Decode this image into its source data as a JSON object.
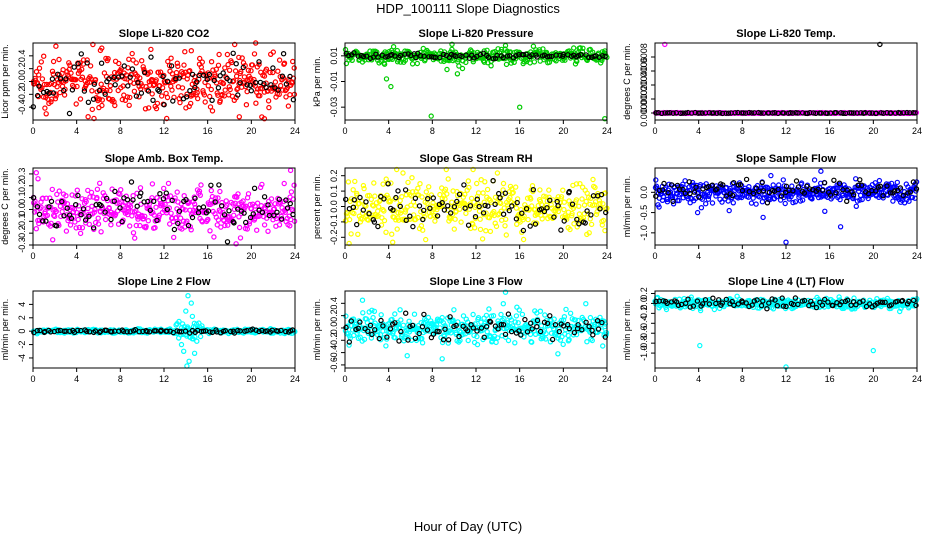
{
  "title": "HDP_100111  Slope Diagnostics",
  "xlabel": "Hour of Day (UTC)",
  "colors": {
    "red": "#ff0000",
    "green": "#00cc00",
    "magenta": "#ff00ff",
    "yellow": "#ffff00",
    "blue": "#0000ff",
    "cyan": "#00ffff",
    "black": "#000000"
  },
  "chart_data": [
    {
      "type": "scatter",
      "title": "Slope Li-820 CO2",
      "ylabel": "Licor ppm per min.",
      "xlim": [
        0,
        24
      ],
      "ylim": [
        -0.6,
        0.6
      ],
      "xticks": [
        "0",
        "4",
        "8",
        "12",
        "16",
        "20",
        "24"
      ],
      "yticks": [
        "-0.4",
        "-0.2",
        "0.0",
        "0.2",
        "0.4"
      ],
      "ytick_values": [
        -0.4,
        -0.2,
        0.0,
        0.2,
        0.4
      ],
      "series": [
        {
          "color": "red",
          "style": "noise",
          "center": 0.0,
          "spread": 0.2,
          "count": 420,
          "x": [
            2.1,
            6.3,
            10.8,
            14.5,
            18.9,
            20.4,
            21.2
          ],
          "y": [
            0.55,
            0.52,
            0.5,
            0.48,
            -0.55,
            0.6,
            -0.58
          ]
        },
        {
          "color": "black",
          "style": "noise",
          "center": 0.0,
          "spread": 0.18,
          "count": 90,
          "x": [],
          "y": []
        }
      ]
    },
    {
      "type": "scatter",
      "title": "Slope Li-820 Pressure",
      "ylabel": "kPa per min.",
      "xlim": [
        0,
        24
      ],
      "ylim": [
        -0.04,
        0.02
      ],
      "xticks": [
        "0",
        "4",
        "8",
        "12",
        "16",
        "20",
        "24"
      ],
      "yticks": [
        "-0.03",
        "-0.01",
        "0.01"
      ],
      "ytick_values": [
        -0.03,
        -0.01,
        0.01
      ],
      "series": [
        {
          "color": "green",
          "style": "noise",
          "center": 0.01,
          "spread": 0.003,
          "count": 380,
          "x": [
            3.8,
            4.2,
            7.9,
            16.0,
            23.8,
            10.3,
            14.7,
            9.8
          ],
          "y": [
            -0.008,
            -0.014,
            -0.037,
            -0.03,
            -0.039,
            -0.004,
            0.018,
            0.019
          ]
        },
        {
          "color": "black",
          "style": "noise",
          "center": 0.01,
          "spread": 0.001,
          "count": 90,
          "x": [],
          "y": []
        }
      ]
    },
    {
      "type": "scatter",
      "title": "Slope Li-820 Temp.",
      "ylabel": "degrees C per min.",
      "xlim": [
        0,
        24
      ],
      "ylim": [
        -0.0001,
        0.001
      ],
      "xticks": [
        "0",
        "4",
        "8",
        "12",
        "16",
        "20",
        "24"
      ],
      "yticks": [
        "0.0000",
        "0.0002",
        "0.0004",
        "0.0006",
        "0.0008"
      ],
      "ytick_values": [
        0.0,
        0.0002,
        0.0004,
        0.0006,
        0.0008
      ],
      "series": [
        {
          "color": "magenta",
          "style": "flat",
          "center": 0.0,
          "spread": 0.0,
          "count": 300,
          "x": [
            0.9,
            20.3
          ],
          "y": [
            0.00098,
            0.0
          ]
        },
        {
          "color": "black",
          "style": "flat",
          "center": 0.0,
          "spread": 0.0,
          "count": 90,
          "x": [
            20.6
          ],
          "y": [
            0.00098
          ]
        }
      ]
    },
    {
      "type": "scatter",
      "title": "Slope Amb. Box Temp.",
      "ylabel": "degrees C per min.",
      "xlim": [
        0,
        24
      ],
      "ylim": [
        -0.3,
        0.35
      ],
      "xticks": [
        "0",
        "4",
        "8",
        "12",
        "16",
        "20",
        "24"
      ],
      "yticks": [
        "-0.3",
        "-0.2",
        "-0.1",
        "0.0",
        "0.1",
        "0.2",
        "0.3"
      ],
      "ytick_values": [
        -0.3,
        -0.2,
        -0.1,
        0.0,
        0.1,
        0.2,
        0.3
      ],
      "series": [
        {
          "color": "magenta",
          "style": "noise",
          "center": 0.0,
          "spread": 0.1,
          "count": 420,
          "x": [
            18.6,
            23.6,
            0.3
          ],
          "y": [
            -0.29,
            0.33,
            0.31
          ]
        },
        {
          "color": "black",
          "style": "noise",
          "center": 0.0,
          "spread": 0.09,
          "count": 90,
          "x": [],
          "y": []
        }
      ]
    },
    {
      "type": "scatter",
      "title": "Slope Gas Stream RH",
      "ylabel": "percent per min.",
      "xlim": [
        0,
        24
      ],
      "ylim": [
        -0.25,
        0.25
      ],
      "xticks": [
        "0",
        "4",
        "8",
        "12",
        "16",
        "20",
        "24"
      ],
      "yticks": [
        "-0.2",
        "-0.1",
        "0.0",
        "0.1",
        "0.2"
      ],
      "ytick_values": [
        -0.2,
        -0.1,
        0.0,
        0.1,
        0.2
      ],
      "series": [
        {
          "color": "yellow",
          "style": "noise",
          "center": 0.0,
          "spread": 0.08,
          "count": 420,
          "x": [],
          "y": []
        },
        {
          "color": "black",
          "style": "noise",
          "center": 0.0,
          "spread": 0.07,
          "count": 90,
          "x": [],
          "y": []
        }
      ]
    },
    {
      "type": "scatter",
      "title": "Slope Sample Flow",
      "ylabel": "ml/min per min.",
      "xlim": [
        0,
        24
      ],
      "ylim": [
        -1.3,
        0.6
      ],
      "xticks": [
        "0",
        "4",
        "8",
        "12",
        "16",
        "20",
        "24"
      ],
      "yticks": [
        "-1.0",
        "-0.5",
        "0.0"
      ],
      "ytick_values": [
        -1.0,
        -0.5,
        0.0
      ],
      "series": [
        {
          "color": "blue",
          "style": "noise",
          "center": 0.0,
          "spread": 0.13,
          "count": 420,
          "x": [
            12.0,
            9.9,
            15.2,
            17.0,
            6.8,
            3.9
          ],
          "y": [
            -1.23,
            -0.62,
            0.52,
            -0.85,
            -0.45,
            -0.5
          ]
        },
        {
          "color": "black",
          "style": "noise",
          "center": 0.05,
          "spread": 0.12,
          "count": 90,
          "x": [],
          "y": []
        }
      ]
    },
    {
      "type": "scatter",
      "title": "Slope Line 2 Flow",
      "ylabel": "ml/min per min.",
      "xlim": [
        0,
        24
      ],
      "ylim": [
        -5.5,
        6
      ],
      "xticks": [
        "0",
        "4",
        "8",
        "12",
        "16",
        "20",
        "24"
      ],
      "yticks": [
        "-4",
        "-2",
        "0",
        "2",
        "4"
      ],
      "ytick_values": [
        -4,
        -2,
        0,
        2,
        4
      ],
      "series": [
        {
          "color": "cyan",
          "style": "spike",
          "center": 0.0,
          "spread": 0.25,
          "count": 420,
          "x": [
            14.2,
            14.5,
            14.0,
            14.8,
            14.3,
            13.8,
            14.6,
            15.0,
            13.6,
            14.1
          ],
          "y": [
            5.3,
            4.2,
            3.0,
            -3.3,
            -4.5,
            -3.0,
            2.2,
            -1.5,
            -2.0,
            -5.2
          ]
        },
        {
          "color": "black",
          "style": "noise",
          "center": 0.0,
          "spread": 0.1,
          "count": 90,
          "x": [],
          "y": []
        }
      ]
    },
    {
      "type": "scatter",
      "title": "Slope Line 3 Flow",
      "ylabel": "ml/min per min.",
      "xlim": [
        0,
        24
      ],
      "ylim": [
        -0.65,
        0.6
      ],
      "xticks": [
        "0",
        "4",
        "8",
        "12",
        "16",
        "20",
        "24"
      ],
      "yticks": [
        "-0.6",
        "-0.4",
        "-0.2",
        "0.0",
        "0.2",
        "0.4"
      ],
      "ytick_values": [
        -0.6,
        -0.4,
        -0.2,
        0.0,
        0.2,
        0.4
      ],
      "series": [
        {
          "color": "cyan",
          "style": "noise",
          "center": 0.0,
          "spread": 0.13,
          "count": 420,
          "x": [
            14.7,
            5.7,
            19.5,
            1.6,
            8.9
          ],
          "y": [
            0.58,
            -0.45,
            -0.42,
            0.45,
            -0.5
          ]
        },
        {
          "color": "black",
          "style": "noise",
          "center": 0.0,
          "spread": 0.1,
          "count": 90,
          "x": [],
          "y": []
        }
      ]
    },
    {
      "type": "scatter",
      "title": "Slope Line 4 (LT) Flow",
      "ylabel": "ml/min per min.",
      "xlim": [
        0,
        24
      ],
      "ylim": [
        -1.3,
        0.25
      ],
      "xticks": [
        "0",
        "4",
        "8",
        "12",
        "16",
        "20",
        "24"
      ],
      "yticks": [
        "-1.0",
        "-0.8",
        "-0.6",
        "-0.4",
        "-0.2",
        "0.0",
        "0.2"
      ],
      "ytick_values": [
        -1.0,
        -0.8,
        -0.6,
        -0.4,
        -0.2,
        0.0,
        0.2
      ],
      "series": [
        {
          "color": "cyan",
          "style": "noise",
          "center": 0.0,
          "spread": 0.05,
          "count": 420,
          "x": [
            4.1,
            12.0,
            20.0
          ],
          "y": [
            -0.85,
            -1.28,
            -0.95
          ]
        },
        {
          "color": "black",
          "style": "noise",
          "center": 0.0,
          "spread": 0.05,
          "count": 90,
          "x": [],
          "y": []
        }
      ]
    }
  ]
}
